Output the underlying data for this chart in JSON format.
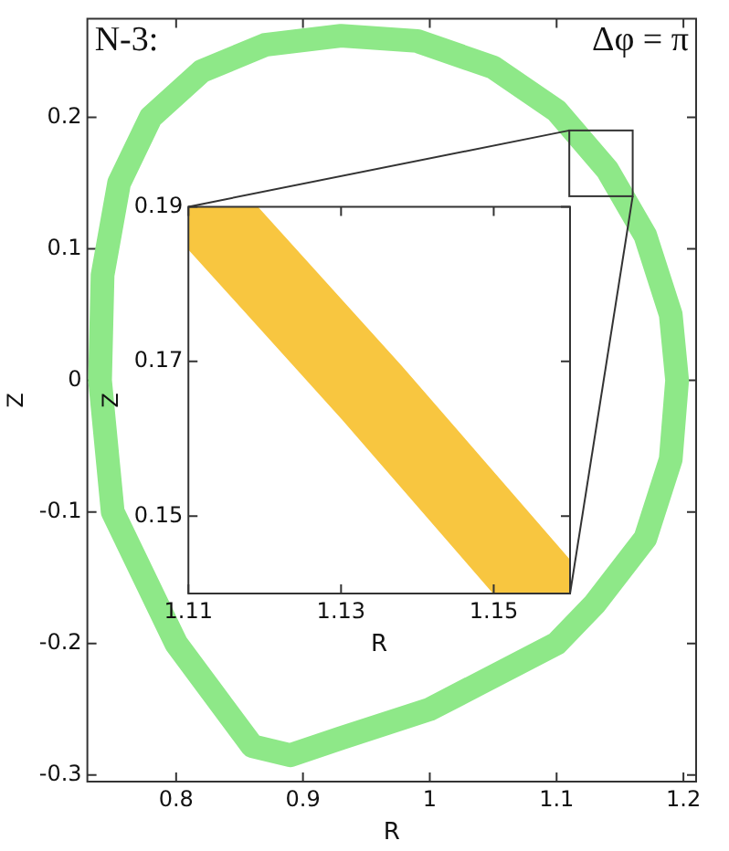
{
  "chart_data": [
    {
      "type": "line",
      "xlabel": "R",
      "ylabel": "Z",
      "annotations": [
        "N-3:",
        "Δφ = π"
      ],
      "xlim": [
        0.73,
        1.21
      ],
      "ylim": [
        -0.305,
        0.275
      ],
      "xticks": [
        0.8,
        0.9,
        1,
        1.1,
        1.2
      ],
      "yticks": [
        -0.3,
        -0.2,
        -0.1,
        0,
        0.1,
        0.2
      ],
      "grid": false,
      "legend": false,
      "marker": "none"
    },
    {
      "type": "line",
      "xlabel": "R",
      "ylabel": "Z",
      "xlim": [
        1.11,
        1.16
      ],
      "ylim": [
        0.14,
        0.19
      ],
      "xticks": [
        1.11,
        1.13,
        1.15
      ],
      "yticks": [
        0.15,
        0.17,
        0.19
      ],
      "grid": false,
      "legend": false,
      "marker": "none",
      "series": [
        {
          "color": "#f8c640",
          "x": [
            1.112,
            1.134,
            1.156
          ],
          "values": [
            0.19,
            0.166,
            0.141
          ]
        }
      ]
    }
  ]
}
